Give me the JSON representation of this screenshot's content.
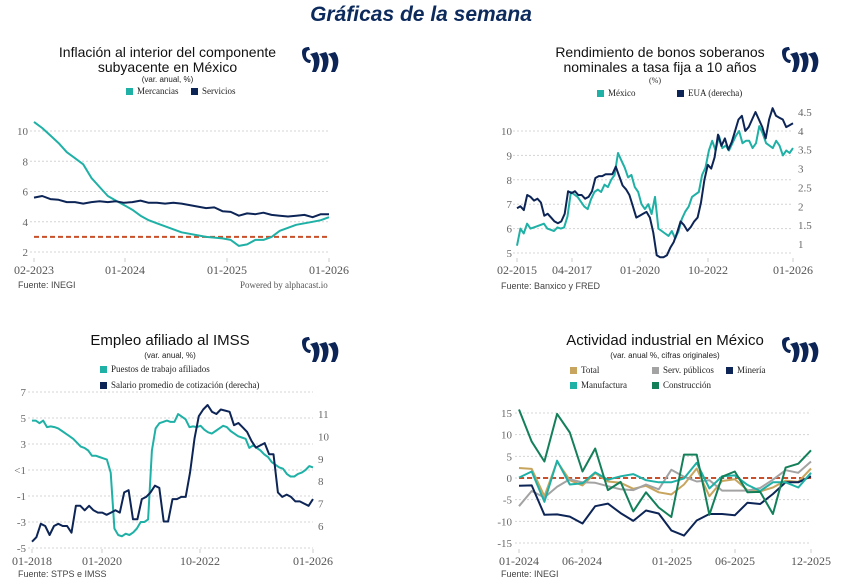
{
  "page": {
    "title": "Gráficas de la semana"
  },
  "colors": {
    "teal": "#1fb0a6",
    "navy": "#0d2556",
    "target": "#c8502b",
    "gold": "#c8a55e",
    "gray": "#a3a3a3",
    "green": "#13805a",
    "title": "#0c2a5c"
  },
  "chart_data": [
    {
      "id": "inflacion",
      "type": "line",
      "title": "Inflación al interior del componente subyacente en México",
      "title_lines": [
        "Inflación al interior del componente",
        "subyacente en México"
      ],
      "subtitle": "(var. anual, %)",
      "source": "Fuente: INEGI",
      "powered": "Powered by alphacast.io",
      "xlabel": "",
      "ylabel": "",
      "x_ticks": [
        "02-2023",
        "01-2024",
        "01-2025",
        "01-2026"
      ],
      "x_range": [
        "2023-02",
        "2026-01"
      ],
      "ylim": [
        2,
        10
      ],
      "y_ticks": [
        "2",
        "4",
        "6",
        "8",
        "10"
      ],
      "grid": true,
      "legend": "top",
      "reference_line": {
        "value": 3,
        "style": "dashed"
      },
      "series": [
        {
          "name": "Mercancias",
          "color_key": "teal",
          "values": [
            10.6,
            10.2,
            9.7,
            9.2,
            8.6,
            8.2,
            7.8,
            6.9,
            6.3,
            5.7,
            5.4,
            5.1,
            4.8,
            4.4,
            4.1,
            3.9,
            3.7,
            3.5,
            3.3,
            3.2,
            3.1,
            3.0,
            2.95,
            2.9,
            2.8,
            2.4,
            2.5,
            2.8,
            2.8,
            3.0,
            3.4,
            3.6,
            3.8,
            3.9,
            4.0,
            4.1,
            4.3
          ]
        },
        {
          "name": "Servicios",
          "color_key": "navy",
          "values": [
            5.6,
            5.7,
            5.5,
            5.45,
            5.3,
            5.3,
            5.2,
            5.3,
            5.35,
            5.3,
            5.35,
            5.25,
            5.3,
            5.4,
            5.25,
            5.25,
            5.2,
            5.25,
            5.2,
            5.1,
            5.0,
            4.9,
            4.95,
            4.7,
            4.65,
            4.4,
            4.55,
            4.5,
            4.6,
            4.45,
            4.4,
            4.35,
            4.4,
            4.45,
            4.3,
            4.5,
            4.5
          ]
        }
      ]
    },
    {
      "id": "bonos",
      "type": "line",
      "title": "Rendimiento de bonos soberanos nominales a tasa fija a 10 años",
      "title_lines": [
        "Rendimiento de bonos soberanos",
        "nominales a tasa fija a 10 años"
      ],
      "subtitle": "(%)",
      "source": "Fuente: Banxico y FRED",
      "xlabel": "",
      "ylabel": "",
      "x_ticks": [
        "02-2015",
        "04-2017",
        "01-2020",
        "10-2022",
        "01-2026"
      ],
      "x_range": [
        "2015-02",
        "2026-01"
      ],
      "ylim": [
        5,
        10
      ],
      "y_ticks": [
        "5",
        "6",
        "7",
        "8",
        "9",
        "10"
      ],
      "y2lim": [
        1,
        4.5
      ],
      "y2_ticks": [
        "1",
        "1.5",
        "2",
        "2.5",
        "3",
        "3.5",
        "4",
        "4.5"
      ],
      "grid": true,
      "legend": "top",
      "series": [
        {
          "name": "México",
          "axis": "left",
          "color_key": "teal",
          "values": [
            5.3,
            6.0,
            5.8,
            6.2,
            6.0,
            6.05,
            6.1,
            6.15,
            6.2,
            6.0,
            5.95,
            5.9,
            6.05,
            6.0,
            6.05,
            6.5,
            7.5,
            7.4,
            7.3,
            7.1,
            6.9,
            6.8,
            7.2,
            7.5,
            7.6,
            7.5,
            7.8,
            7.7,
            8.0,
            8.2,
            9.1,
            8.8,
            8.5,
            8.1,
            8.2,
            7.7,
            7.5,
            7.0,
            6.8,
            7.0,
            6.6,
            7.3,
            6.0,
            5.9,
            5.8,
            5.7,
            5.9,
            5.6,
            5.9,
            6.4,
            6.7,
            6.9,
            7.3,
            7.4,
            7.5,
            8.2,
            8.5,
            9.2,
            9.6,
            9.2,
            9.8,
            9.3,
            9.4,
            9.2,
            9.5,
            9.8,
            10.0,
            9.5,
            9.6,
            9.6,
            9.3,
            9.5,
            10.2,
            9.9,
            9.5,
            9.4,
            9.3,
            9.6,
            9.4,
            9.0,
            9.2,
            9.1,
            9.3
          ]
        },
        {
          "name": "EUA (derecha)",
          "axis": "right",
          "color_key": "navy",
          "values": [
            1.95,
            2.0,
            1.9,
            2.3,
            2.25,
            2.15,
            2.2,
            2.1,
            1.75,
            1.8,
            1.7,
            1.6,
            1.55,
            1.6,
            1.8,
            2.4,
            2.35,
            2.4,
            2.3,
            2.3,
            2.2,
            2.25,
            2.4,
            2.75,
            2.8,
            2.8,
            2.85,
            2.85,
            2.85,
            3.05,
            2.8,
            2.55,
            2.45,
            2.3,
            2.0,
            1.7,
            1.75,
            1.8,
            1.85,
            1.7,
            1.3,
            0.7,
            0.65,
            0.65,
            0.7,
            0.9,
            1.05,
            1.3,
            1.6,
            1.5,
            1.35,
            1.45,
            1.6,
            1.7,
            2.1,
            2.7,
            3.1,
            3.0,
            3.3,
            3.9,
            3.6,
            3.8,
            3.5,
            3.7,
            4.0,
            4.3,
            4.4,
            4.0,
            4.1,
            4.3,
            4.5,
            4.3,
            4.1,
            3.8,
            4.3,
            4.6,
            4.4,
            4.35,
            4.3,
            4.1,
            4.15,
            4.2
          ]
        }
      ]
    },
    {
      "id": "empleo",
      "type": "line",
      "title": "Empleo afiliado al IMSS",
      "subtitle": "(var. anual, %)",
      "source": "Fuente: STPS e IMSS",
      "xlabel": "",
      "ylabel": "",
      "x_ticks": [
        "01-2018",
        "01-2020",
        "10-2022",
        "01-2026"
      ],
      "x_range": [
        "2018-01",
        "2026-01"
      ],
      "ylim": [
        -5,
        7
      ],
      "y_ticks": [
        "-5",
        "-3",
        "-1",
        "<1",
        "3",
        "5",
        "7"
      ],
      "y2lim": [
        5,
        11.5
      ],
      "y2_ticks": [
        "6",
        "7",
        "8",
        "9",
        "10",
        "11"
      ],
      "grid": true,
      "legend": "top-left",
      "series": [
        {
          "name": "Puestos de trabajo afiliados",
          "axis": "left",
          "color_key": "teal",
          "values": [
            4.8,
            4.8,
            4.6,
            4.8,
            4.3,
            4.35,
            4.3,
            4.2,
            4.0,
            3.8,
            3.6,
            3.4,
            3.1,
            2.8,
            2.7,
            2.5,
            2.1,
            2.1,
            2.0,
            1.9,
            1.8,
            0.8,
            -3.5,
            -4.0,
            -4.1,
            -3.9,
            -4.0,
            -3.8,
            -3.5,
            -3.0,
            -3.0,
            -2.8,
            2.5,
            4.2,
            4.6,
            4.7,
            4.8,
            4.7,
            4.7,
            5.3,
            5.1,
            4.9,
            4.3,
            4.35,
            4.3,
            4.4,
            4.1,
            3.9,
            3.8,
            4.0,
            4.2,
            4.4,
            4.3,
            4.0,
            3.8,
            3.6,
            3.5,
            3.4,
            2.7,
            2.9,
            2.7,
            2.5,
            2.2,
            2.0,
            1.6,
            1.4,
            1.2,
            1.1,
            0.7,
            0.5,
            0.5,
            0.7,
            0.8,
            1.0,
            1.3,
            1.2
          ]
        },
        {
          "name": "Salario promedio de cotización (derecha)",
          "axis": "right",
          "color_key": "navy",
          "values": [
            5.3,
            5.5,
            6.1,
            6.0,
            5.6,
            6.0,
            6.1,
            6.0,
            6.0,
            5.7,
            6.9,
            6.9,
            6.7,
            6.9,
            6.7,
            6.6,
            6.6,
            6.5,
            6.6,
            6.7,
            6.6,
            7.5,
            7.6,
            6.3,
            6.3,
            7.2,
            7.3,
            7.5,
            7.8,
            7.7,
            6.2,
            6.2,
            7.2,
            7.2,
            7.3,
            7.3,
            8.4,
            9.9,
            10.9,
            11.2,
            11.4,
            11.1,
            11.0,
            11.2,
            11.15,
            11.1,
            10.5,
            10.6,
            10.4,
            10.2,
            9.8,
            9.5,
            9.6,
            9.7,
            9.2,
            9.2,
            7.5,
            7.3,
            7.4,
            7.3,
            7.1,
            7.1,
            7.0,
            6.9,
            7.2
          ]
        }
      ]
    },
    {
      "id": "industrial",
      "type": "line",
      "title": "Actividad industrial en México",
      "subtitle": "(var. anual %, cifras originales)",
      "source": "Fuente: INEGI",
      "xlabel": "",
      "ylabel": "",
      "x": [
        "01-2024",
        "02-2024",
        "03-2024",
        "04-2024",
        "05-2024",
        "06-2024",
        "07-2024",
        "08-2024",
        "09-2024",
        "10-2024",
        "11-2024",
        "12-2024",
        "01-2025",
        "02-2025",
        "03-2025",
        "04-2025",
        "05-2025",
        "06-2025",
        "07-2025",
        "08-2025",
        "09-2025",
        "10-2025",
        "11-2025",
        "12-2025"
      ],
      "x_ticks": [
        "01-2024",
        "06-2024",
        "01-2025",
        "06-2025",
        "12-2025"
      ],
      "ylim": [
        -15,
        15
      ],
      "y_ticks": [
        "-15",
        "-10",
        "-5",
        "0",
        "5",
        "10",
        "15"
      ],
      "grid": true,
      "legend": "top",
      "reference_line": {
        "value": 0,
        "style": "dashed"
      },
      "series": [
        {
          "name": "Total",
          "color_key": "gold",
          "values": [
            2.3,
            2.1,
            -4.2,
            3.8,
            -0.5,
            -1.7,
            1.1,
            -0.8,
            -1.1,
            -2.5,
            -1.8,
            -3.3,
            -3.8,
            -1.5,
            2.2,
            -4.2,
            -0.7,
            -0.3,
            -2.8,
            -3.1,
            -2.2,
            -0.6,
            -0.9,
            2.2
          ]
        },
        {
          "name": "Serv. públicos",
          "color_key": "gray",
          "values": [
            -6.5,
            -3.0,
            -4.5,
            -2.0,
            -0.3,
            -1.0,
            -1.1,
            -1.9,
            -2.6,
            -2.8,
            -1.5,
            -2.6,
            1.9,
            0.3,
            -0.8,
            -0.5,
            -2.9,
            -2.9,
            -2.9,
            -2.3,
            -0.4,
            1.8,
            1.2,
            3.8
          ]
        },
        {
          "name": "Minería",
          "color_key": "navy",
          "values": [
            -1.8,
            -1.7,
            -8.5,
            -8.4,
            -8.9,
            -10.5,
            -6.5,
            -5.9,
            -8.1,
            -9.9,
            -7.5,
            -8.2,
            -12.1,
            -13.3,
            -9.8,
            -8.3,
            -8.3,
            -8.6,
            -5.7,
            -6.0,
            -3.7,
            -1.0,
            -1.0,
            0.4
          ]
        },
        {
          "name": "Manufactura",
          "color_key": "teal",
          "values": [
            0.1,
            1.5,
            -5.5,
            4.0,
            -1.5,
            -1.2,
            1.3,
            -0.4,
            0.4,
            0.9,
            -0.5,
            -1.0,
            -1.0,
            -0.1,
            3.5,
            -2.4,
            0.4,
            0.6,
            -1.6,
            -3.0,
            -1.0,
            -1.0,
            -2.2,
            1.2
          ]
        },
        {
          "name": "Construcción",
          "color_key": "green",
          "values": [
            15.8,
            8.4,
            3.8,
            14.8,
            10.5,
            1.5,
            6.8,
            -2.8,
            -0.9,
            -7.7,
            -3.3,
            -6.8,
            -9.0,
            5.4,
            5.4,
            -8.5,
            0.3,
            1.5,
            -3.3,
            -3.2,
            -8.3,
            2.4,
            3.3,
            6.4
          ]
        }
      ]
    }
  ]
}
